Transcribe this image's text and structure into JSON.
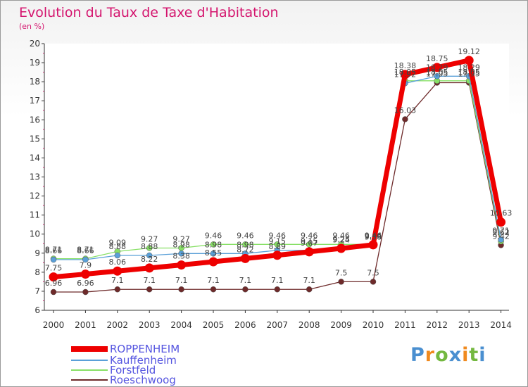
{
  "chart_data": {
    "type": "line",
    "title": "Evolution du Taux de Taxe d'Habitation",
    "subtitle": "(en %)",
    "xlabel": "",
    "ylabel": "",
    "ylim": [
      6,
      20
    ],
    "yticks": [
      6,
      7,
      8,
      9,
      10,
      11,
      12,
      13,
      14,
      15,
      16,
      17,
      18,
      19,
      20
    ],
    "x": [
      2000,
      2001,
      2002,
      2003,
      2004,
      2005,
      2006,
      2007,
      2008,
      2009,
      2010,
      2011,
      2012,
      2013,
      2014
    ],
    "grid": false,
    "legend_position": "bottom-left",
    "series": [
      {
        "name": "ROPPENHEIM",
        "color": "#ee0000",
        "values": [
          7.75,
          7.9,
          8.06,
          8.22,
          8.38,
          8.55,
          8.72,
          8.89,
          9.07,
          9.25,
          9.44,
          18.38,
          18.75,
          19.12,
          10.63
        ]
      },
      {
        "name": "Kauffenheim",
        "color": "#5aa0d8",
        "values": [
          8.66,
          8.66,
          8.88,
          8.88,
          8.98,
          8.98,
          8.98,
          9.15,
          9.15,
          9.24,
          9.38,
          17.92,
          18.29,
          18.29,
          9.71
        ]
      },
      {
        "name": "Forstfeld",
        "color": "#88e066",
        "values": [
          8.71,
          8.71,
          9.09,
          9.27,
          9.27,
          9.46,
          9.46,
          9.46,
          9.46,
          9.46,
          9.46,
          18.05,
          18.05,
          18.05,
          9.62
        ]
      },
      {
        "name": "Roeschwoog",
        "color": "#6e2a2a",
        "values": [
          6.96,
          6.96,
          7.1,
          7.1,
          7.1,
          7.1,
          7.1,
          7.1,
          7.1,
          7.5,
          7.5,
          16.03,
          17.95,
          17.95,
          9.42
        ]
      }
    ]
  },
  "brand": {
    "letters": [
      "P",
      "r",
      "o",
      "x",
      "i",
      "t",
      "i"
    ],
    "colors": [
      "#4a8fd0",
      "#f08a1e",
      "#74b840",
      "#4a8fd0",
      "#f08a1e",
      "#74b840",
      "#4a8fd0"
    ]
  }
}
